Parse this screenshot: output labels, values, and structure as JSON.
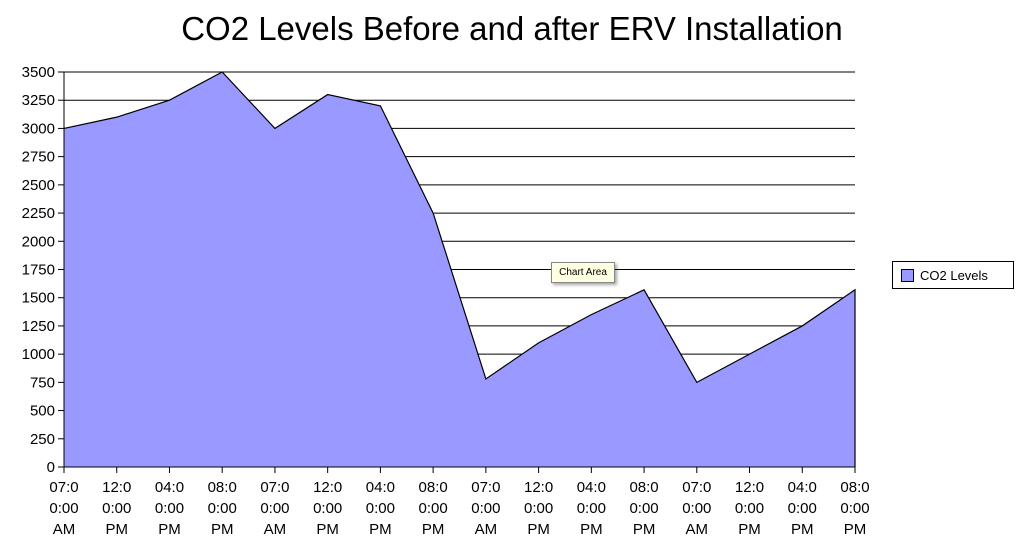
{
  "chart_data": {
    "type": "area",
    "title": "CO2 Levels Before and after ERV Installation",
    "xlabel": "",
    "ylabel": "",
    "categories": [
      [
        "07:0",
        "0:00",
        "AM"
      ],
      [
        "12:0",
        "0:00",
        "PM"
      ],
      [
        "04:0",
        "0:00",
        "PM"
      ],
      [
        "08:0",
        "0:00",
        "PM"
      ],
      [
        "07:0",
        "0:00",
        "AM"
      ],
      [
        "12:0",
        "0:00",
        "PM"
      ],
      [
        "04:0",
        "0:00",
        "PM"
      ],
      [
        "08:0",
        "0:00",
        "PM"
      ],
      [
        "07:0",
        "0:00",
        "AM"
      ],
      [
        "12:0",
        "0:00",
        "PM"
      ],
      [
        "04:0",
        "0:00",
        "PM"
      ],
      [
        "08:0",
        "0:00",
        "PM"
      ],
      [
        "07:0",
        "0:00",
        "AM"
      ],
      [
        "12:0",
        "0:00",
        "PM"
      ],
      [
        "04:0",
        "0:00",
        "PM"
      ],
      [
        "08:0",
        "0:00",
        "PM"
      ]
    ],
    "series": [
      {
        "name": "CO2 Levels",
        "color": "#9999ff",
        "values": [
          3000,
          3100,
          3250,
          3500,
          3000,
          3300,
          3200,
          2250,
          780,
          1100,
          1350,
          1570,
          750,
          1000,
          1250,
          1570
        ]
      }
    ],
    "ylim": [
      0,
      3500
    ],
    "yticks": [
      0,
      250,
      500,
      750,
      1000,
      1250,
      1500,
      1750,
      2000,
      2250,
      2500,
      2750,
      3000,
      3250,
      3500
    ],
    "grid": true,
    "legend_position": "right"
  },
  "tooltip": {
    "text": "Chart Area"
  },
  "legend": {
    "label": "CO2 Levels",
    "color": "#9999ff"
  }
}
